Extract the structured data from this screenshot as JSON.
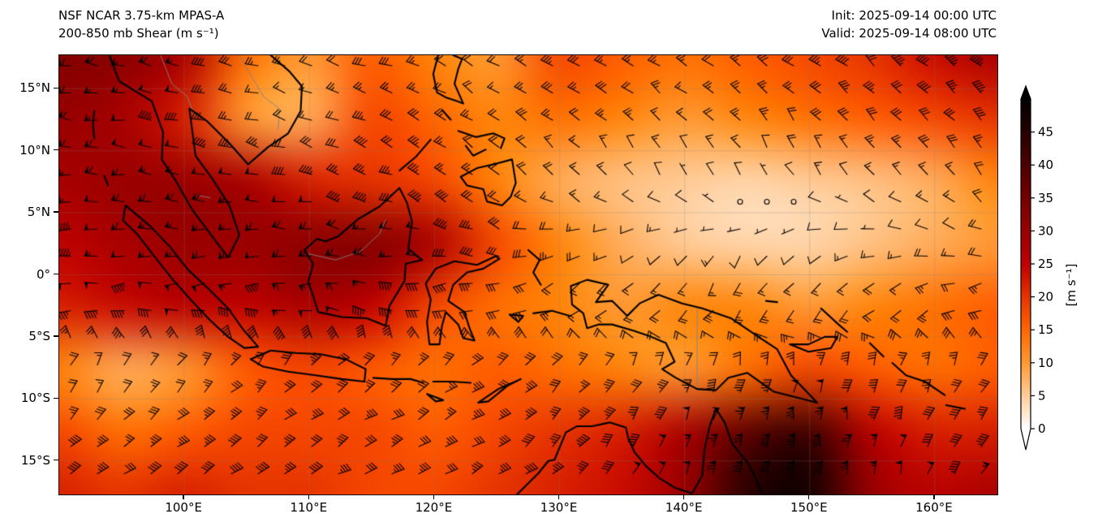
{
  "header": {
    "model_title": "NSF NCAR 3.75-km MPAS-A",
    "field_title": "200-850 mb Shear (m s⁻¹)",
    "init_label": "Init: 2025-09-14 00:00 UTC",
    "valid_label": "Valid: 2025-09-14 08:00 UTC"
  },
  "chart_data": {
    "type": "heatmap",
    "title": "NSF NCAR 3.75-km MPAS-A 200-850 mb Shear (m s⁻¹)",
    "x_axis": {
      "range_lon": [
        90,
        165
      ],
      "ticks": [
        100,
        110,
        120,
        130,
        140,
        150,
        160
      ],
      "tick_labels": [
        "100°E",
        "110°E",
        "120°E",
        "130°E",
        "140°E",
        "150°E",
        "160°E"
      ]
    },
    "y_axis": {
      "range_lat": [
        -17.7,
        17.7
      ],
      "ticks": [
        15,
        10,
        5,
        0,
        -5,
        -10,
        -15
      ],
      "tick_labels": [
        "15°N",
        "10°N",
        "5°N",
        "0°",
        "5°S",
        "10°S",
        "15°S"
      ]
    },
    "colorbar": {
      "label": "[m s⁻¹]",
      "vmin": 0,
      "vmax": 50,
      "extend": "both",
      "ticks": [
        0,
        5,
        10,
        15,
        20,
        25,
        30,
        35,
        40,
        45
      ],
      "colormap": "white-orange-red-black (gist_heat reversed)"
    },
    "grid_lons": [
      90,
      95,
      100,
      105,
      110,
      115,
      120,
      125,
      130,
      135,
      140,
      145,
      150,
      155,
      160,
      165
    ],
    "grid_lats": [
      17.5,
      12.5,
      7.5,
      2.5,
      -2.5,
      -7.5,
      -12.5,
      -17.5
    ],
    "shear_grid": [
      [
        33,
        32,
        28,
        14,
        10,
        16,
        12,
        10,
        18,
        16,
        14,
        16,
        18,
        20,
        24,
        28
      ],
      [
        30,
        28,
        22,
        10,
        8,
        18,
        15,
        12,
        14,
        12,
        10,
        12,
        14,
        16,
        18,
        20
      ],
      [
        28,
        30,
        30,
        28,
        22,
        20,
        18,
        12,
        8,
        6,
        5,
        4,
        5,
        6,
        8,
        12
      ],
      [
        25,
        28,
        30,
        30,
        32,
        33,
        28,
        18,
        12,
        8,
        5,
        4,
        4,
        6,
        8,
        10
      ],
      [
        22,
        24,
        26,
        25,
        28,
        25,
        18,
        14,
        12,
        10,
        12,
        12,
        10,
        12,
        14,
        16
      ],
      [
        12,
        8,
        10,
        16,
        18,
        16,
        14,
        16,
        14,
        12,
        10,
        14,
        18,
        16,
        14,
        16
      ],
      [
        18,
        14,
        16,
        18,
        18,
        18,
        16,
        18,
        20,
        22,
        28,
        38,
        42,
        26,
        22,
        22
      ],
      [
        22,
        20,
        22,
        20,
        20,
        18,
        18,
        20,
        22,
        24,
        30,
        45,
        48,
        30,
        26,
        28
      ]
    ],
    "barb_dir_grid": [
      [
        170,
        170,
        170,
        165,
        160,
        160,
        155,
        150,
        150,
        150,
        150,
        145,
        145,
        140,
        140,
        140
      ],
      [
        175,
        172,
        170,
        165,
        160,
        155,
        150,
        145,
        140,
        135,
        135,
        130,
        130,
        130,
        135,
        135
      ],
      [
        180,
        178,
        175,
        170,
        165,
        160,
        150,
        140,
        130,
        120,
        110,
        115,
        120,
        125,
        130,
        130
      ],
      [
        185,
        182,
        180,
        178,
        175,
        170,
        165,
        160,
        200,
        210,
        220,
        230,
        210,
        190,
        170,
        160
      ],
      [
        190,
        190,
        188,
        185,
        182,
        180,
        200,
        210,
        220,
        230,
        240,
        250,
        240,
        230,
        220,
        210
      ],
      [
        60,
        55,
        50,
        45,
        40,
        38,
        35,
        30,
        45,
        55,
        60,
        70,
        75,
        70,
        65,
        60
      ],
      [
        45,
        42,
        40,
        38,
        35,
        32,
        30,
        35,
        45,
        60,
        70,
        80,
        85,
        80,
        70,
        60
      ],
      [
        35,
        32,
        30,
        28,
        25,
        25,
        25,
        30,
        40,
        55,
        70,
        80,
        85,
        80,
        70,
        60
      ]
    ],
    "gridlines": {
      "lon_step": 10,
      "lat_step": 5,
      "color": "rgba(128,128,128,0.35)"
    }
  },
  "map": {
    "coastline_color": "#000000",
    "border_color": "rgba(130,130,130,0.9)",
    "coastlines": [
      [
        [
          94,
          17.7
        ],
        [
          94.8,
          15.6
        ],
        [
          97.4,
          14
        ],
        [
          98.3,
          11.5
        ],
        [
          98.2,
          9.3
        ],
        [
          99.3,
          7.6
        ],
        [
          100.6,
          5.3
        ],
        [
          102,
          3.4
        ],
        [
          103.5,
          1.4
        ],
        [
          104.4,
          3.2
        ],
        [
          103.6,
          5.6
        ],
        [
          102.2,
          7.8
        ],
        [
          100.9,
          9.6
        ],
        [
          100.4,
          13.4
        ],
        [
          101.8,
          12.4
        ],
        [
          103.6,
          10.6
        ],
        [
          105.1,
          8.9
        ],
        [
          106.7,
          10.3
        ],
        [
          108.3,
          11.4
        ],
        [
          109.3,
          13.2
        ],
        [
          109.4,
          15.2
        ],
        [
          108.4,
          16.4
        ],
        [
          106.9,
          17.7
        ]
      ],
      [
        [
          95.3,
          5.6
        ],
        [
          97.3,
          3.9
        ],
        [
          98.9,
          2.2
        ],
        [
          100.3,
          0.4
        ],
        [
          101.9,
          -1.1
        ],
        [
          103.5,
          -2.7
        ],
        [
          104.7,
          -4.4
        ],
        [
          105.9,
          -5.8
        ],
        [
          104.8,
          -5.9
        ],
        [
          103.5,
          -5
        ],
        [
          102,
          -3.6
        ],
        [
          100.5,
          -2
        ],
        [
          99.1,
          -0.4
        ],
        [
          97.9,
          1.1
        ],
        [
          96.3,
          3.2
        ],
        [
          95.1,
          4.4
        ],
        [
          95.3,
          5.6
        ]
      ],
      [
        [
          105.3,
          -6.8
        ],
        [
          106.9,
          -6.1
        ],
        [
          108.9,
          -6.3
        ],
        [
          110.9,
          -6.4
        ],
        [
          112.9,
          -6.8
        ],
        [
          114.5,
          -7.6
        ],
        [
          114.4,
          -8.6
        ],
        [
          112.6,
          -8.4
        ],
        [
          110.5,
          -8.1
        ],
        [
          108.3,
          -7.8
        ],
        [
          106.3,
          -7.4
        ],
        [
          105.3,
          -6.8
        ]
      ],
      [
        [
          109.6,
          2
        ],
        [
          110.3,
          0.9
        ],
        [
          109.9,
          -0.6
        ],
        [
          110.3,
          -1.7
        ],
        [
          110.7,
          -3
        ],
        [
          112.6,
          -3.4
        ],
        [
          114.6,
          -3.5
        ],
        [
          116.1,
          -4.1
        ],
        [
          116.4,
          -2.5
        ],
        [
          117.6,
          -0.5
        ],
        [
          117.7,
          0.9
        ],
        [
          119,
          1.2
        ],
        [
          117.9,
          2.1
        ],
        [
          118.2,
          4.3
        ],
        [
          117.8,
          5.8
        ],
        [
          117.2,
          7
        ],
        [
          115.6,
          5.5
        ],
        [
          113.9,
          4.5
        ],
        [
          112.3,
          3.1
        ],
        [
          111.3,
          2.7
        ],
        [
          110.6,
          2.9
        ],
        [
          109.6,
          2
        ]
      ],
      [
        [
          120.1,
          0.5
        ],
        [
          121.6,
          1.1
        ],
        [
          123.4,
          0.8
        ],
        [
          124.9,
          1.5
        ],
        [
          125.2,
          1.3
        ],
        [
          123.9,
          0.5
        ],
        [
          122.6,
          0.2
        ],
        [
          121.5,
          -0.8
        ],
        [
          121.1,
          -2.1
        ],
        [
          122.4,
          -3
        ],
        [
          122.8,
          -4.3
        ],
        [
          123.2,
          -5.3
        ],
        [
          122.3,
          -5.1
        ],
        [
          121.9,
          -4
        ],
        [
          120.9,
          -3
        ],
        [
          120.6,
          -4.1
        ],
        [
          120.4,
          -5.6
        ],
        [
          119.6,
          -5.6
        ],
        [
          119.4,
          -3.8
        ],
        [
          119.7,
          -2
        ],
        [
          119.3,
          -0.7
        ],
        [
          120.1,
          0.5
        ]
      ],
      [
        [
          120.3,
          17.7
        ],
        [
          119.9,
          16.2
        ],
        [
          120.2,
          14.7
        ],
        [
          120.9,
          14.3
        ],
        [
          121.8,
          14
        ],
        [
          122.3,
          13.8
        ],
        [
          121.6,
          15.4
        ],
        [
          121.9,
          16.6
        ],
        [
          122.2,
          17.4
        ],
        [
          121.5,
          17.7
        ]
      ],
      [
        [
          122.1,
          7.9
        ],
        [
          123.4,
          8.6
        ],
        [
          124.7,
          8.9
        ],
        [
          126.2,
          9.3
        ],
        [
          126.5,
          7.4
        ],
        [
          126.1,
          6.3
        ],
        [
          125.4,
          5.6
        ],
        [
          124.2,
          5.9
        ],
        [
          123.9,
          6.9
        ],
        [
          122.6,
          7.2
        ],
        [
          122.1,
          7.9
        ]
      ],
      [
        [
          121.9,
          11.6
        ],
        [
          123.3,
          11.1
        ],
        [
          124.7,
          11.4
        ],
        [
          125.6,
          11
        ],
        [
          125.3,
          10.2
        ]
      ],
      [
        [
          122.5,
          10.4
        ],
        [
          123.1,
          9.6
        ],
        [
          124.1,
          10.1
        ]
      ],
      [
        [
          117.2,
          8.4
        ],
        [
          118.5,
          9.5
        ],
        [
          119.7,
          10.9
        ]
      ],
      [
        [
          120.6,
          13.3
        ],
        [
          121.3,
          12.5
        ]
      ],
      [
        [
          127.5,
          2
        ],
        [
          128.4,
          1.2
        ],
        [
          127.9,
          0.2
        ],
        [
          128.5,
          -0.8
        ]
      ],
      [
        [
          127.9,
          -3.1
        ],
        [
          129.4,
          -2.9
        ],
        [
          130.8,
          -3.3
        ]
      ],
      [
        [
          126,
          -3.2
        ],
        [
          127.1,
          -3.3
        ],
        [
          126.7,
          -3.8
        ],
        [
          126,
          -3.2
        ]
      ],
      [
        [
          123.5,
          -10.3
        ],
        [
          125.1,
          -9.2
        ],
        [
          126.9,
          -8.4
        ],
        [
          125.9,
          -8.9
        ],
        [
          124.3,
          -10.2
        ],
        [
          123.5,
          -10.3
        ]
      ],
      [
        [
          115.1,
          -8.3
        ],
        [
          116.6,
          -8.4
        ],
        [
          118.1,
          -8.4
        ],
        [
          119.1,
          -8.7
        ]
      ],
      [
        [
          119.9,
          -8.6
        ],
        [
          121.4,
          -8.6
        ],
        [
          122.9,
          -8.7
        ]
      ],
      [
        [
          119.4,
          -9.6
        ],
        [
          120.7,
          -10.1
        ],
        [
          120.1,
          -10.2
        ],
        [
          119.4,
          -9.6
        ]
      ],
      [
        [
          130.9,
          -0.9
        ],
        [
          132.2,
          -0.4
        ],
        [
          133.9,
          -0.8
        ],
        [
          132.9,
          -2.2
        ],
        [
          134.2,
          -2.1
        ],
        [
          135.4,
          -3.3
        ],
        [
          136.4,
          -2.3
        ],
        [
          137.9,
          -1.6
        ],
        [
          139.8,
          -2.3
        ],
        [
          141.4,
          -2.7
        ],
        [
          143.7,
          -3.5
        ],
        [
          145.9,
          -5
        ],
        [
          147.4,
          -6
        ],
        [
          148.5,
          -8.1
        ],
        [
          150.6,
          -10.3
        ],
        [
          149.4,
          -10
        ],
        [
          147.1,
          -9.4
        ],
        [
          145,
          -7.9
        ],
        [
          143.5,
          -8.3
        ],
        [
          142.5,
          -9.3
        ],
        [
          141,
          -9.2
        ],
        [
          139.3,
          -8.3
        ],
        [
          138.2,
          -7.6
        ],
        [
          139.2,
          -7
        ],
        [
          138.5,
          -5.5
        ],
        [
          137.1,
          -4.9
        ],
        [
          135.9,
          -4.5
        ],
        [
          134.2,
          -4
        ],
        [
          133.1,
          -4
        ],
        [
          132.2,
          -4.3
        ],
        [
          131.9,
          -3.1
        ],
        [
          131,
          -2.4
        ],
        [
          130.9,
          -0.9
        ]
      ],
      [
        [
          126.6,
          -17.7
        ],
        [
          128.3,
          -16
        ],
        [
          129.1,
          -15
        ],
        [
          129.6,
          -14.9
        ],
        [
          130.5,
          -12.7
        ],
        [
          131.4,
          -12.2
        ],
        [
          132.6,
          -12.2
        ],
        [
          134,
          -11.9
        ],
        [
          135.3,
          -12.3
        ],
        [
          135.5,
          -13.2
        ],
        [
          136,
          -14.3
        ],
        [
          136.9,
          -15.4
        ],
        [
          138,
          -16.4
        ],
        [
          139.3,
          -17.2
        ],
        [
          140.6,
          -17.6
        ],
        [
          141.4,
          -16.2
        ],
        [
          141.6,
          -14
        ],
        [
          142,
          -12.2
        ],
        [
          142.5,
          -10.8
        ],
        [
          143.2,
          -11.9
        ],
        [
          143.8,
          -13.6
        ],
        [
          145,
          -15.1
        ],
        [
          145.6,
          -16.2
        ],
        [
          146.2,
          -17.7
        ]
      ],
      [
        [
          148.4,
          -5.6
        ],
        [
          149.9,
          -6.2
        ],
        [
          151.7,
          -5.9
        ],
        [
          152.2,
          -5
        ],
        [
          151.2,
          -5
        ],
        [
          149.9,
          -5.6
        ],
        [
          148.4,
          -5.6
        ]
      ],
      [
        [
          150.9,
          -2.7
        ],
        [
          152.3,
          -4
        ],
        [
          153,
          -4.6
        ]
      ],
      [
        [
          154.8,
          -5.5
        ],
        [
          155.9,
          -6.6
        ]
      ],
      [
        [
          156.6,
          -7.1
        ],
        [
          157.7,
          -8.1
        ],
        [
          159.2,
          -8.6
        ],
        [
          160.8,
          -9.7
        ]
      ],
      [
        [
          160.9,
          -10.5
        ],
        [
          162.4,
          -10.8
        ]
      ],
      [
        [
          146.5,
          -2.1
        ],
        [
          147.4,
          -2.2
        ]
      ],
      [
        [
          92.8,
          13.2
        ],
        [
          92.7,
          12.1
        ],
        [
          92.8,
          11
        ]
      ],
      [
        [
          93.6,
          8
        ],
        [
          93.9,
          7.2
        ]
      ]
    ],
    "borders": [
      [
        [
          98.1,
          17.7
        ],
        [
          99,
          15.4
        ],
        [
          100.2,
          14.4
        ],
        [
          100.9,
          12.7
        ]
      ],
      [
        [
          104.4,
          17.7
        ],
        [
          105.6,
          15.6
        ],
        [
          106.3,
          14.4
        ],
        [
          107.6,
          13.4
        ],
        [
          107.5,
          11.7
        ]
      ],
      [
        [
          109.9,
          1.7
        ],
        [
          112.1,
          1.2
        ],
        [
          114.1,
          1.9
        ],
        [
          115.6,
          3.3
        ],
        [
          116.1,
          4.4
        ]
      ],
      [
        [
          141,
          -2.7
        ],
        [
          141,
          -9.1
        ]
      ],
      [
        [
          101.1,
          6.4
        ],
        [
          102.1,
          6.2
        ]
      ]
    ]
  }
}
